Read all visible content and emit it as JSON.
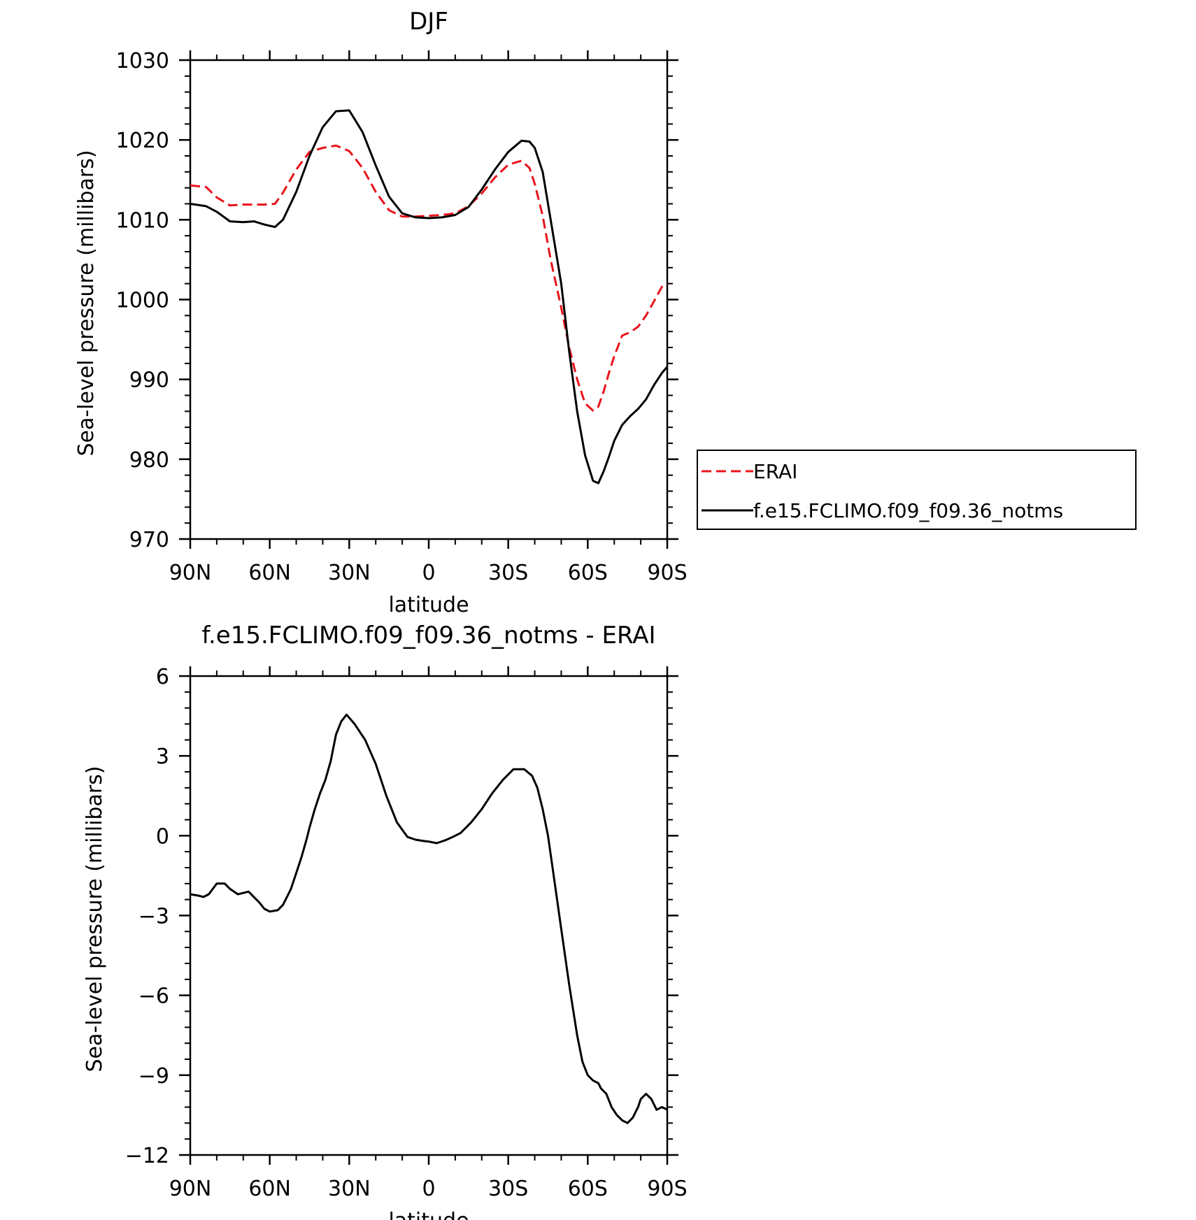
{
  "chart_data": [
    {
      "type": "line",
      "title": "DJF",
      "xlabel": "latitude",
      "ylabel": "Sea-level pressure (millibars)",
      "xlim": [
        90,
        -90
      ],
      "ylim": [
        970,
        1030
      ],
      "x_ticks": [
        90,
        60,
        30,
        0,
        -30,
        -60,
        -90
      ],
      "x_tick_labels": [
        "90N",
        "60N",
        "30N",
        "0",
        "30S",
        "60S",
        "90S"
      ],
      "y_ticks": [
        970,
        980,
        990,
        1000,
        1010,
        1020,
        1030
      ],
      "y_tick_labels": [
        "970",
        "980",
        "990",
        "1000",
        "1010",
        "1020",
        "1030"
      ],
      "legend": {
        "placement": "right",
        "entries": [
          "ERAI",
          "f.e15.FCLIMO.f09_f09.36_notms"
        ]
      },
      "x": [
        90,
        84,
        80,
        75,
        70,
        66,
        62,
        58,
        55,
        50,
        45,
        40,
        35,
        30,
        25,
        20,
        15,
        10,
        5,
        0,
        -5,
        -10,
        -15,
        -20,
        -25,
        -30,
        -35,
        -38,
        -40,
        -43,
        -46,
        -50,
        -53,
        -56,
        -59,
        -62,
        -64,
        -66,
        -68,
        -70,
        -73,
        -76,
        -79,
        -82,
        -85,
        -88,
        -90
      ],
      "series": [
        {
          "name": "ERAI",
          "color": "#e8141c",
          "dash": "dashed",
          "values": [
            1014.3,
            1014.1,
            1012.8,
            1011.8,
            1011.9,
            1011.9,
            1011.9,
            1012.0,
            1013.4,
            1016.3,
            1018.5,
            1019.0,
            1019.3,
            1018.6,
            1016.5,
            1013.5,
            1011.2,
            1010.4,
            1010.4,
            1010.5,
            1010.6,
            1010.8,
            1011.7,
            1013.3,
            1015.3,
            1016.9,
            1017.4,
            1016.5,
            1014.5,
            1010.5,
            1005.0,
            999.0,
            994.0,
            990.0,
            987.0,
            986.1,
            986.6,
            988.5,
            990.8,
            992.9,
            995.5,
            995.9,
            996.6,
            998.0,
            999.8,
            1001.6,
            1002.0
          ]
        },
        {
          "name": "f.e15.FCLIMO.f09_f09.36_notms",
          "color": "#000000",
          "dash": "solid",
          "values": [
            1012.0,
            1011.7,
            1011.0,
            1009.8,
            1009.7,
            1009.8,
            1009.4,
            1009.1,
            1010.0,
            1013.5,
            1018.0,
            1021.6,
            1023.6,
            1023.7,
            1021.0,
            1016.8,
            1012.9,
            1010.8,
            1010.3,
            1010.2,
            1010.3,
            1010.6,
            1011.6,
            1013.8,
            1016.3,
            1018.5,
            1019.9,
            1019.8,
            1019.0,
            1016.0,
            1010.0,
            1002.0,
            993.5,
            986.0,
            980.5,
            977.3,
            977.0,
            978.5,
            980.3,
            982.3,
            984.3,
            985.4,
            986.3,
            987.5,
            989.3,
            990.8,
            991.6
          ]
        }
      ]
    },
    {
      "type": "line",
      "title": "f.e15.FCLIMO.f09_f09.36_notms - ERAI",
      "xlabel": "latitude",
      "ylabel": "Sea-level pressure (millibars)",
      "xlim": [
        90,
        -90
      ],
      "ylim": [
        -12,
        6
      ],
      "x_ticks": [
        90,
        60,
        30,
        0,
        -30,
        -60,
        -90
      ],
      "x_tick_labels": [
        "90N",
        "60N",
        "30N",
        "0",
        "30S",
        "60S",
        "90S"
      ],
      "y_ticks": [
        -12,
        -9,
        -6,
        -3,
        0,
        3,
        6
      ],
      "y_tick_labels": [
        "−12",
        "−9",
        "−6",
        "−3",
        "0",
        "3",
        "6"
      ],
      "x": [
        90,
        87,
        85,
        83,
        80,
        77,
        75,
        72,
        70,
        68,
        66,
        64,
        62,
        60,
        57,
        55,
        52,
        50,
        48,
        46,
        45,
        43,
        41,
        39,
        37,
        35,
        33,
        31,
        28,
        24,
        20,
        16,
        12,
        8,
        5,
        2,
        0,
        -3,
        -6,
        -9,
        -12,
        -16,
        -20,
        -24,
        -28,
        -32,
        -36,
        -39,
        -41,
        -43,
        -45,
        -47,
        -50,
        -53,
        -56,
        -58,
        -60,
        -62,
        -64,
        -65,
        -67,
        -69,
        -71,
        -73,
        -75,
        -77,
        -79,
        -80,
        -82,
        -84,
        -86,
        -88,
        -90
      ],
      "series": [
        {
          "name": "f.e15.FCLIMO.f09_f09.36_notms - ERAI",
          "color": "#000000",
          "dash": "solid",
          "values": [
            -2.2,
            -2.25,
            -2.3,
            -2.2,
            -1.8,
            -1.8,
            -2.0,
            -2.2,
            -2.15,
            -2.1,
            -2.3,
            -2.5,
            -2.75,
            -2.85,
            -2.8,
            -2.6,
            -2.0,
            -1.4,
            -0.8,
            -0.1,
            0.3,
            1.0,
            1.6,
            2.1,
            2.8,
            3.8,
            4.3,
            4.55,
            4.2,
            3.6,
            2.7,
            1.5,
            0.5,
            -0.05,
            -0.15,
            -0.2,
            -0.22,
            -0.28,
            -0.18,
            -0.05,
            0.1,
            0.5,
            1.0,
            1.6,
            2.1,
            2.5,
            2.5,
            2.25,
            1.8,
            1.0,
            0.0,
            -1.4,
            -3.5,
            -5.6,
            -7.5,
            -8.5,
            -9.0,
            -9.2,
            -9.3,
            -9.5,
            -9.7,
            -10.2,
            -10.5,
            -10.7,
            -10.8,
            -10.6,
            -10.2,
            -9.9,
            -9.7,
            -9.9,
            -10.3,
            -10.2,
            -10.3
          ]
        }
      ]
    }
  ]
}
